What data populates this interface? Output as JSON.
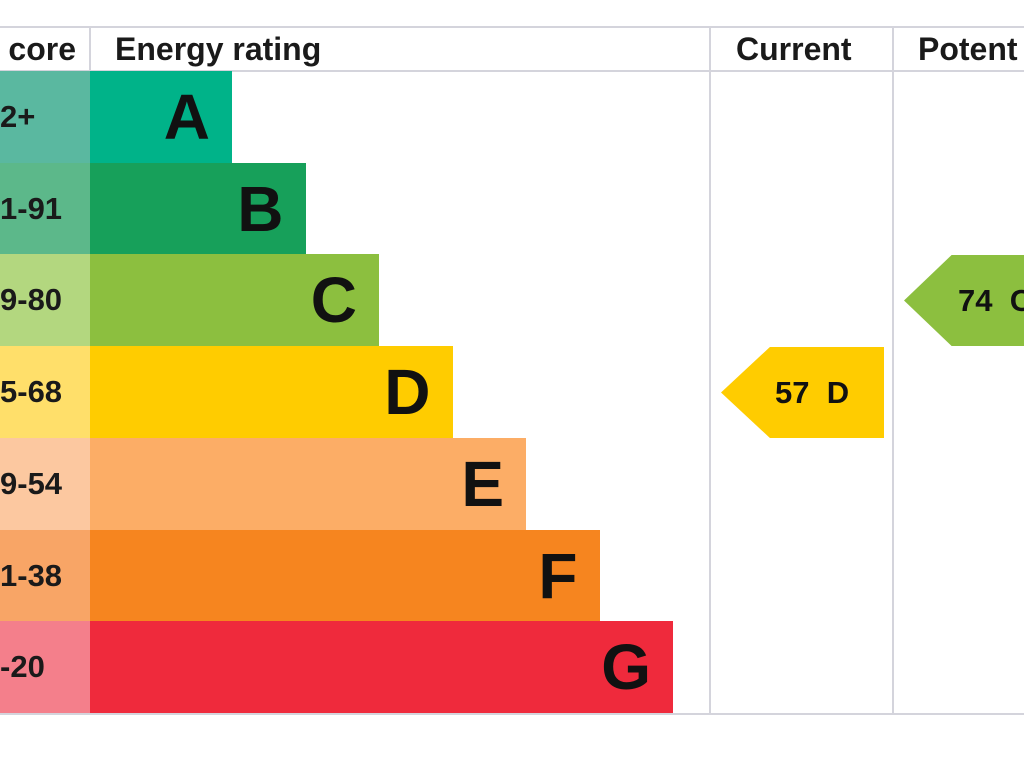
{
  "header": {
    "score": "core",
    "energy_rating": "Energy rating",
    "current": "Current",
    "potential": "Potent"
  },
  "chart_data": {
    "type": "bar",
    "categories": [
      "A",
      "B",
      "C",
      "D",
      "E",
      "F",
      "G"
    ],
    "score_ranges": [
      "2+",
      "1-91",
      "9-80",
      "5-68",
      "9-54",
      "1-38",
      "-20"
    ],
    "colors": [
      "#00b389",
      "#17a05a",
      "#8cbf3f",
      "#ffcc00",
      "#fcad66",
      "#f6851f",
      "#ef2a3c"
    ],
    "score_colors": [
      "#5ab8a0",
      "#5cb88a",
      "#b3d77f",
      "#ffdf6a",
      "#fcc8a0",
      "#f8a566",
      "#f47f8b"
    ],
    "current": {
      "value": "57",
      "band": "D",
      "color": "#ffcc00"
    },
    "potential": {
      "value": "74",
      "band": "C",
      "color": "#8cbf3f"
    }
  }
}
